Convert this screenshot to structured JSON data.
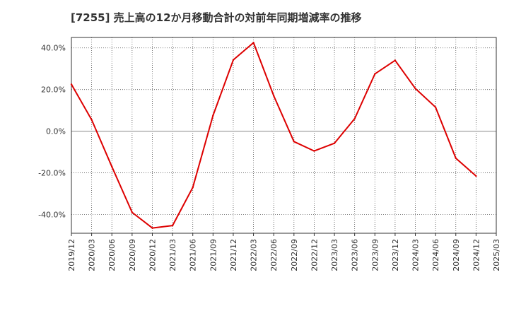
{
  "chart_data": {
    "type": "line",
    "title": "[7255]  売上高の12か月移動合計の対前年同期増減率の推移",
    "xlabel": "",
    "ylabel": "",
    "categories": [
      "2019/12",
      "2020/03",
      "2020/06",
      "2020/09",
      "2020/12",
      "2021/03",
      "2021/06",
      "2021/09",
      "2021/12",
      "2022/03",
      "2022/06",
      "2022/09",
      "2022/12",
      "2023/03",
      "2023/06",
      "2023/09",
      "2023/12",
      "2024/03",
      "2024/06",
      "2024/09",
      "2024/12",
      "2025/03"
    ],
    "series": [
      {
        "name": "売上高の12か月移動合計の対前年同期増減率",
        "color": "#dd0000",
        "values": [
          22.5,
          5.5,
          -17.0,
          -39.0,
          -46.5,
          -45.3,
          -27.0,
          7.5,
          34.2,
          42.5,
          17.0,
          -5.0,
          -9.5,
          -5.8,
          6.0,
          27.5,
          34.0,
          20.5,
          11.5,
          -13.0,
          -21.5,
          null
        ]
      }
    ],
    "ylim": [
      -49,
      45
    ],
    "yticks": [
      40,
      20,
      0,
      -20,
      -40
    ],
    "ytick_labels": [
      "40.0%",
      "20.0%",
      "0.0%",
      "-20.0%",
      "-40.0%"
    ],
    "grid": true
  }
}
